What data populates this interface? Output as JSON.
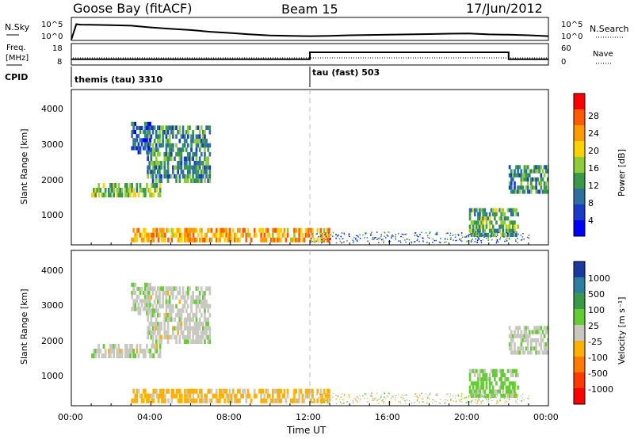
{
  "header": {
    "station": "Goose Bay (fitACF)",
    "beam": "Beam 15",
    "date": "17/Jun/2012"
  },
  "noise_panel": {
    "left_label": "N.Sky",
    "right_label": "N.Search",
    "ytick_top": "10^5",
    "ytick_bottom": "10^0",
    "right_tick_top": "10^5",
    "right_tick_bottom": "10^0",
    "sky_hours": [
      0,
      0.25,
      0.5,
      1,
      2,
      3,
      4,
      5,
      6,
      7,
      8,
      9,
      10,
      11,
      12,
      13,
      14,
      15,
      16,
      17,
      18,
      19,
      20,
      21,
      22,
      23,
      24
    ],
    "sky_level": [
      0.0,
      0.88,
      0.86,
      0.85,
      0.83,
      0.8,
      0.7,
      0.62,
      0.55,
      0.45,
      0.38,
      0.3,
      0.24,
      0.22,
      0.2,
      0.22,
      0.25,
      0.27,
      0.28,
      0.3,
      0.32,
      0.34,
      0.35,
      0.3,
      0.28,
      0.25,
      0.2
    ]
  },
  "freq_panel": {
    "left_label_1": "Freq.",
    "left_label_2": "[MHz]",
    "right_label": "Nave",
    "ytick_top": "18",
    "ytick_bottom": "8",
    "right_tick_top": "60",
    "right_tick_bottom": "0",
    "freq_hours": [
      0,
      12,
      12,
      22,
      22,
      24
    ],
    "freq_mhz": [
      10.5,
      10.5,
      14,
      14,
      10.5,
      10.5
    ]
  },
  "cpid": {
    "label": "CPID",
    "mode_1": "themis (tau) 3310",
    "mode_2": "tau (fast) 503"
  },
  "power_panel": {
    "ylabel": "Slant Range [km]",
    "yticks": [
      "4000",
      "3000",
      "2000",
      "1000"
    ],
    "colorbar_label": "Power [dB]",
    "colorbar_ticks": [
      "28",
      "24",
      "20",
      "16",
      "12",
      "8",
      "4"
    ],
    "colorbar_colors": [
      "#ff0000",
      "#ff5a00",
      "#ff9a00",
      "#ffd200",
      "#8fcc3a",
      "#3a9a4a",
      "#2d6fa0",
      "#1a3ac8",
      "#0000ff"
    ]
  },
  "velocity_panel": {
    "ylabel": "Slant Range [km]",
    "yticks": [
      "4000",
      "3000",
      "2000",
      "1000"
    ],
    "colorbar_label": "Velocity [m s⁻¹]",
    "colorbar_ticks": [
      "1000",
      "500",
      "100",
      "25",
      "-25",
      "-100",
      "-500",
      "-1000"
    ],
    "colorbar_colors": [
      "#1a3aa0",
      "#2d7fa0",
      "#3a9a4a",
      "#66cc33",
      "#c8c8c0",
      "#ffb000",
      "#ff7a00",
      "#ff3a00",
      "#ff0000"
    ]
  },
  "xaxis": {
    "title": "Time UT",
    "ticks": [
      "00:00",
      "04:00",
      "08:00",
      "12:00",
      "16:00",
      "20:00",
      "00:00"
    ]
  },
  "chart_data": {
    "type": "heatmap",
    "title": "Goose Bay (fitACF)  Beam 15  17/Jun/2012",
    "xlabel": "Time UT",
    "ylabel": "Slant Range [km]",
    "xlim_hours": [
      0,
      24
    ],
    "ylim_km": [
      180,
      4500
    ],
    "power_db_range": [
      0,
      30
    ],
    "velocity_range": [
      -1000,
      1000
    ],
    "echo_regions": [
      {
        "name": "near-range band",
        "t_start_h": 3.0,
        "t_end_h": 13.0,
        "r_min_km": 250,
        "r_max_km": 650,
        "power_db": 22,
        "velocity": -200
      },
      {
        "name": "band 1600-1900",
        "t_start_h": 1.0,
        "t_end_h": 4.5,
        "r_min_km": 1500,
        "r_max_km": 1900,
        "power_db": 14,
        "velocity": 10
      },
      {
        "name": "rising arc",
        "t_start_h": 3.8,
        "t_end_h": 7.0,
        "r_min_km": 1900,
        "r_max_km": 3500,
        "power_db": 10,
        "velocity": 20
      },
      {
        "name": "patch 3000",
        "t_start_h": 3.0,
        "t_end_h": 4.0,
        "r_min_km": 2700,
        "r_max_km": 3600,
        "power_db": 6,
        "velocity": 50
      },
      {
        "name": "evening arc",
        "t_start_h": 22.0,
        "t_end_h": 24.0,
        "r_min_km": 1600,
        "r_max_km": 2400,
        "power_db": 10,
        "velocity": 30
      },
      {
        "name": "evening slope",
        "t_start_h": 20.0,
        "t_end_h": 22.5,
        "r_min_km": 400,
        "r_max_km": 1200,
        "power_db": 12,
        "velocity": 200
      }
    ]
  }
}
